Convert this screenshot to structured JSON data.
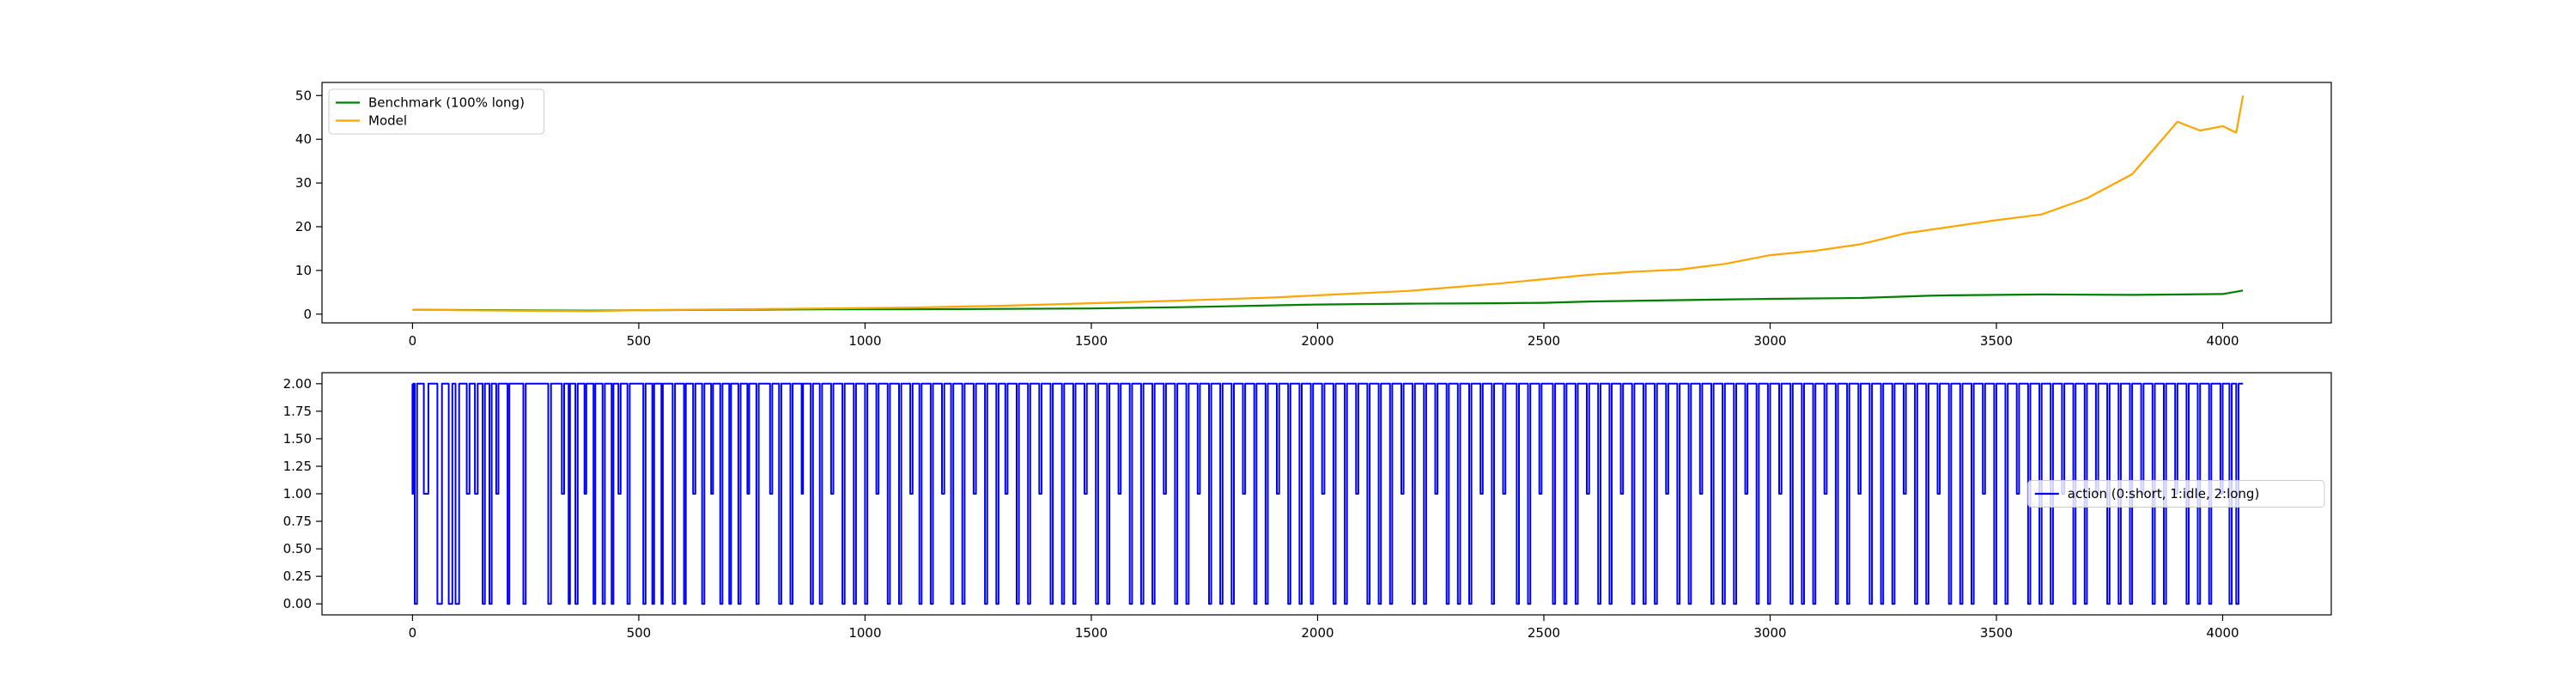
{
  "chart_data": [
    {
      "type": "line",
      "xlim": [
        -200,
        4240
      ],
      "ylim": [
        -2,
        53
      ],
      "xticks": [
        "0",
        "500",
        "1000",
        "1500",
        "2000",
        "2500",
        "3000",
        "3500",
        "4000"
      ],
      "yticks": [
        "0",
        "10",
        "20",
        "30",
        "40",
        "50"
      ],
      "legend_position": "upper-left",
      "series": [
        {
          "name": "Benchmark (100% long)",
          "color": "#008000",
          "x": [
            0,
            200,
            400,
            500,
            700,
            900,
            1100,
            1300,
            1500,
            1700,
            1900,
            2000,
            2200,
            2400,
            2500,
            2600,
            2800,
            3000,
            3200,
            3350,
            3400,
            3600,
            3800,
            4000,
            4045
          ],
          "y": [
            1.0,
            0.9,
            0.8,
            0.9,
            1.0,
            1.1,
            1.1,
            1.2,
            1.3,
            1.6,
            2.0,
            2.2,
            2.4,
            2.5,
            2.6,
            2.9,
            3.2,
            3.5,
            3.7,
            4.2,
            4.3,
            4.5,
            4.4,
            4.6,
            5.4
          ]
        },
        {
          "name": "Model",
          "color": "#FFA500",
          "x": [
            0,
            200,
            400,
            500,
            700,
            900,
            1100,
            1300,
            1500,
            1700,
            1900,
            2000,
            2200,
            2400,
            2500,
            2600,
            2700,
            2800,
            2900,
            3000,
            3100,
            3200,
            3300,
            3400,
            3500,
            3600,
            3700,
            3800,
            3850,
            3900,
            3950,
            4000,
            4030,
            4045
          ],
          "y": [
            1.0,
            0.8,
            0.7,
            0.9,
            1.1,
            1.3,
            1.5,
            1.9,
            2.5,
            3.1,
            3.8,
            4.3,
            5.3,
            7.0,
            8.0,
            9.0,
            9.7,
            10.2,
            11.5,
            13.5,
            14.5,
            16.0,
            18.5,
            20.0,
            21.5,
            22.8,
            26.5,
            32.0,
            38.0,
            44.0,
            42.0,
            43.0,
            41.5,
            50.0
          ]
        }
      ]
    },
    {
      "type": "line",
      "xlim": [
        -200,
        4240
      ],
      "ylim": [
        -0.1,
        2.1
      ],
      "xticks": [
        "0",
        "500",
        "1000",
        "1500",
        "2000",
        "2500",
        "3000",
        "3500",
        "4000"
      ],
      "yticks": [
        "0.00",
        "0.25",
        "0.50",
        "0.75",
        "1.00",
        "1.25",
        "1.50",
        "1.75",
        "2.00"
      ],
      "legend_position": "center-right",
      "series": [
        {
          "name": "action (0:short, 1:idle, 2:long)",
          "color": "#0000FF",
          "step": true,
          "x_start": 0,
          "x_end": 4045,
          "y_default": 2,
          "transitions": [
            [
              0,
              2,
              1
            ],
            [
              5,
              10,
              0
            ],
            [
              25,
              35,
              1
            ],
            [
              55,
              65,
              0
            ],
            [
              80,
              88,
              0
            ],
            [
              95,
              103,
              0
            ],
            [
              120,
              126,
              1
            ],
            [
              138,
              144,
              1
            ],
            [
              155,
              160,
              0
            ],
            [
              170,
              175,
              0
            ],
            [
              185,
              190,
              1
            ],
            [
              210,
              214,
              0
            ],
            [
              245,
              250,
              0
            ],
            [
              300,
              306,
              0
            ],
            [
              330,
              335,
              1
            ],
            [
              345,
              348,
              0
            ],
            [
              360,
              365,
              0
            ],
            [
              380,
              384,
              1
            ],
            [
              400,
              404,
              0
            ],
            [
              420,
              425,
              0
            ],
            [
              440,
              444,
              0
            ],
            [
              455,
              460,
              1
            ],
            [
              475,
              480,
              0
            ],
            [
              510,
              515,
              0
            ],
            [
              530,
              534,
              0
            ],
            [
              550,
              553,
              0
            ],
            [
              575,
              580,
              0
            ],
            [
              600,
              604,
              0
            ],
            [
              620,
              625,
              1
            ],
            [
              640,
              645,
              0
            ],
            [
              660,
              664,
              1
            ],
            [
              680,
              685,
              0
            ],
            [
              700,
              704,
              0
            ],
            [
              720,
              725,
              0
            ],
            [
              740,
              744,
              1
            ],
            [
              760,
              765,
              0
            ],
            [
              790,
              795,
              1
            ],
            [
              810,
              815,
              0
            ],
            [
              835,
              840,
              0
            ],
            [
              860,
              863,
              1
            ],
            [
              880,
              885,
              0
            ],
            [
              900,
              905,
              0
            ],
            [
              925,
              930,
              1
            ],
            [
              950,
              955,
              0
            ],
            [
              975,
              980,
              0
            ],
            [
              1000,
              1005,
              0
            ],
            [
              1025,
              1030,
              1
            ],
            [
              1050,
              1055,
              0
            ],
            [
              1075,
              1080,
              0
            ],
            [
              1100,
              1105,
              1
            ],
            [
              1120,
              1125,
              0
            ],
            [
              1145,
              1150,
              0
            ],
            [
              1170,
              1175,
              1
            ],
            [
              1190,
              1195,
              0
            ],
            [
              1215,
              1220,
              0
            ],
            [
              1240,
              1245,
              1
            ],
            [
              1265,
              1270,
              0
            ],
            [
              1290,
              1295,
              0
            ],
            [
              1310,
              1315,
              1
            ],
            [
              1335,
              1340,
              0
            ],
            [
              1360,
              1365,
              0
            ],
            [
              1385,
              1390,
              1
            ],
            [
              1410,
              1415,
              0
            ],
            [
              1435,
              1440,
              0
            ],
            [
              1460,
              1465,
              0
            ],
            [
              1485,
              1490,
              1
            ],
            [
              1510,
              1515,
              0
            ],
            [
              1535,
              1540,
              0
            ],
            [
              1560,
              1565,
              1
            ],
            [
              1585,
              1590,
              0
            ],
            [
              1610,
              1615,
              0
            ],
            [
              1635,
              1640,
              0
            ],
            [
              1660,
              1665,
              1
            ],
            [
              1685,
              1690,
              0
            ],
            [
              1710,
              1715,
              0
            ],
            [
              1735,
              1740,
              1
            ],
            [
              1760,
              1765,
              0
            ],
            [
              1785,
              1790,
              0
            ],
            [
              1810,
              1815,
              0
            ],
            [
              1835,
              1840,
              1
            ],
            [
              1860,
              1865,
              0
            ],
            [
              1885,
              1890,
              0
            ],
            [
              1910,
              1915,
              1
            ],
            [
              1935,
              1940,
              0
            ],
            [
              1960,
              1965,
              0
            ],
            [
              1985,
              1990,
              0
            ],
            [
              2010,
              2015,
              1
            ],
            [
              2035,
              2040,
              0
            ],
            [
              2060,
              2065,
              0
            ],
            [
              2085,
              2090,
              1
            ],
            [
              2110,
              2115,
              0
            ],
            [
              2135,
              2140,
              0
            ],
            [
              2160,
              2165,
              0
            ],
            [
              2185,
              2190,
              1
            ],
            [
              2210,
              2215,
              0
            ],
            [
              2235,
              2240,
              0
            ],
            [
              2260,
              2265,
              1
            ],
            [
              2285,
              2290,
              0
            ],
            [
              2310,
              2315,
              0
            ],
            [
              2335,
              2340,
              0
            ],
            [
              2360,
              2365,
              1
            ],
            [
              2385,
              2390,
              0
            ],
            [
              2410,
              2415,
              1
            ],
            [
              2440,
              2445,
              0
            ],
            [
              2465,
              2470,
              0
            ],
            [
              2490,
              2495,
              1
            ],
            [
              2520,
              2525,
              0
            ],
            [
              2545,
              2550,
              0
            ],
            [
              2570,
              2575,
              0
            ],
            [
              2595,
              2600,
              1
            ],
            [
              2620,
              2625,
              0
            ],
            [
              2645,
              2650,
              0
            ],
            [
              2670,
              2675,
              1
            ],
            [
              2695,
              2700,
              0
            ],
            [
              2720,
              2725,
              0
            ],
            [
              2745,
              2750,
              0
            ],
            [
              2770,
              2775,
              1
            ],
            [
              2795,
              2800,
              0
            ],
            [
              2820,
              2825,
              0
            ],
            [
              2845,
              2850,
              1
            ],
            [
              2870,
              2875,
              0
            ],
            [
              2895,
              2900,
              0
            ],
            [
              2920,
              2925,
              0
            ],
            [
              2945,
              2950,
              1
            ],
            [
              2970,
              2975,
              0
            ],
            [
              2995,
              3000,
              0
            ],
            [
              3020,
              3025,
              1
            ],
            [
              3045,
              3050,
              0
            ],
            [
              3070,
              3075,
              0
            ],
            [
              3095,
              3100,
              0
            ],
            [
              3120,
              3125,
              1
            ],
            [
              3145,
              3150,
              0
            ],
            [
              3170,
              3175,
              0
            ],
            [
              3195,
              3200,
              1
            ],
            [
              3220,
              3225,
              0
            ],
            [
              3245,
              3250,
              0
            ],
            [
              3270,
              3275,
              0
            ],
            [
              3295,
              3300,
              1
            ],
            [
              3320,
              3325,
              0
            ],
            [
              3345,
              3350,
              0
            ],
            [
              3370,
              3375,
              1
            ],
            [
              3395,
              3400,
              0
            ],
            [
              3420,
              3425,
              0
            ],
            [
              3445,
              3450,
              0
            ],
            [
              3470,
              3475,
              1
            ],
            [
              3495,
              3500,
              0
            ],
            [
              3520,
              3525,
              0
            ],
            [
              3545,
              3550,
              1
            ],
            [
              3570,
              3575,
              0
            ],
            [
              3595,
              3600,
              0
            ],
            [
              3620,
              3625,
              0
            ],
            [
              3645,
              3650,
              1
            ],
            [
              3670,
              3675,
              0
            ],
            [
              3695,
              3700,
              0
            ],
            [
              3720,
              3725,
              1
            ],
            [
              3745,
              3750,
              0
            ],
            [
              3770,
              3775,
              0
            ],
            [
              3795,
              3800,
              0
            ],
            [
              3820,
              3825,
              1
            ],
            [
              3845,
              3850,
              0
            ],
            [
              3870,
              3875,
              0
            ],
            [
              3895,
              3900,
              1
            ],
            [
              3920,
              3925,
              0
            ],
            [
              3945,
              3950,
              0
            ],
            [
              3970,
              3975,
              0
            ],
            [
              3995,
              4000,
              1
            ],
            [
              4015,
              4020,
              0
            ],
            [
              4030,
              4035,
              0
            ]
          ]
        }
      ]
    }
  ]
}
